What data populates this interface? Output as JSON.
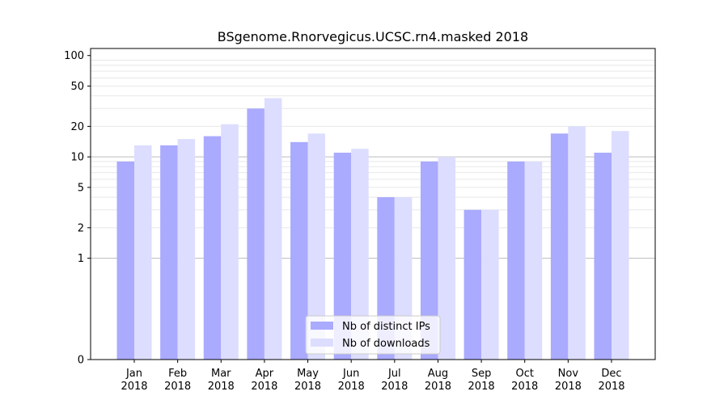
{
  "chart_data": {
    "type": "bar",
    "title": "BSgenome.Rnorvegicus.UCSC.rn4.masked 2018",
    "xlabel": "",
    "ylabel": "",
    "yscale": "symlog",
    "ylim": [
      0,
      100
    ],
    "yticks": [
      0,
      1,
      2,
      5,
      10,
      20,
      50,
      100
    ],
    "major_gridlines": [
      1,
      10
    ],
    "grid": "horizontal",
    "categories": [
      [
        "Jan",
        "2018"
      ],
      [
        "Feb",
        "2018"
      ],
      [
        "Mar",
        "2018"
      ],
      [
        "Apr",
        "2018"
      ],
      [
        "May",
        "2018"
      ],
      [
        "Jun",
        "2018"
      ],
      [
        "Jul",
        "2018"
      ],
      [
        "Aug",
        "2018"
      ],
      [
        "Sep",
        "2018"
      ],
      [
        "Oct",
        "2018"
      ],
      [
        "Nov",
        "2018"
      ],
      [
        "Dec",
        "2018"
      ]
    ],
    "series": [
      {
        "name": "Nb of distinct IPs",
        "color": "#aaaaff",
        "values": [
          9,
          13,
          16,
          30,
          14,
          11,
          4,
          9,
          3,
          9,
          17,
          11
        ]
      },
      {
        "name": "Nb of downloads",
        "color": "#ddddff",
        "values": [
          13,
          15,
          21,
          38,
          17,
          12,
          4,
          10,
          3,
          9,
          20,
          18
        ]
      }
    ],
    "legend": "bottom-center"
  }
}
